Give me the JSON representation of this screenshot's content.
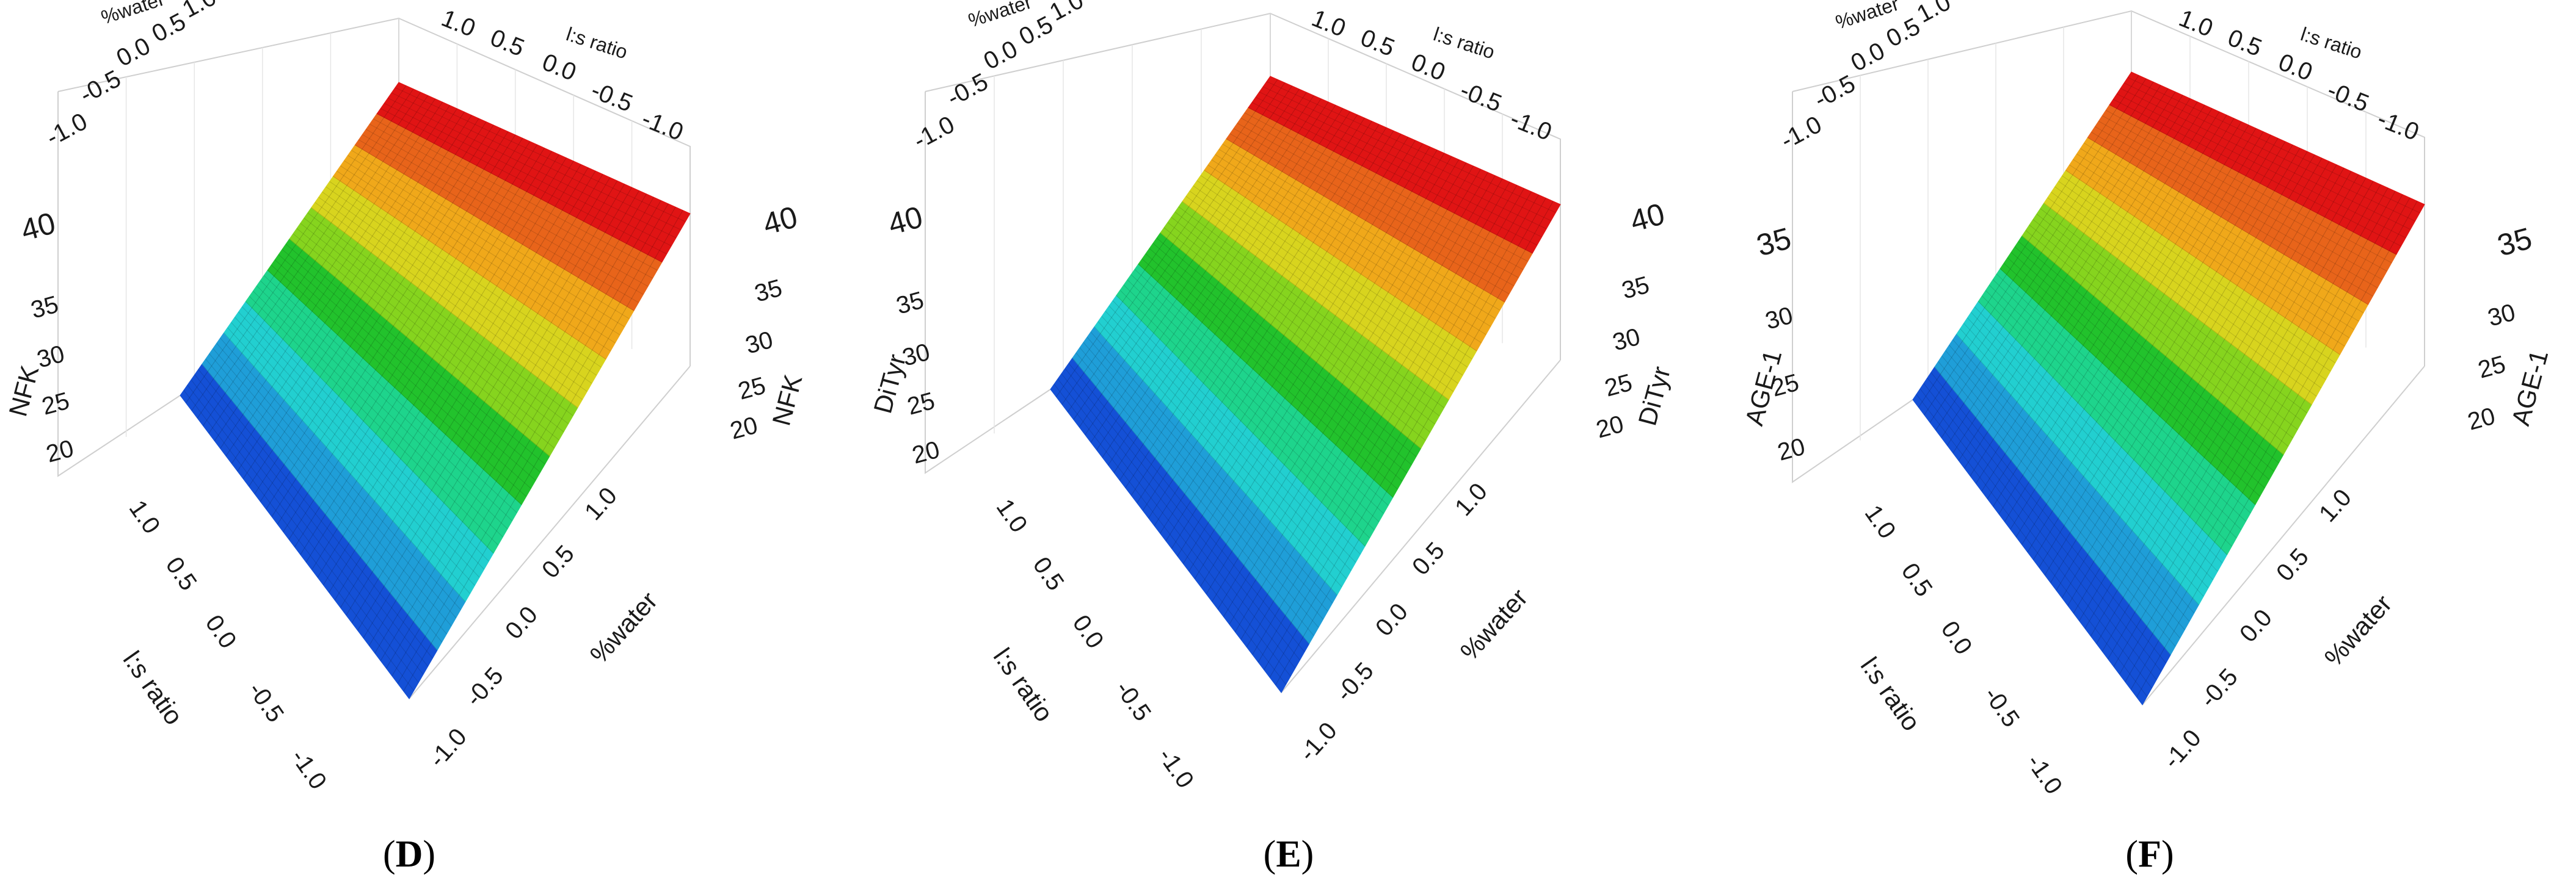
{
  "chart_data": [
    {
      "type": "surface",
      "panel_label": "D",
      "x_label": "%water",
      "y_label": "l:s ratio",
      "z_label": "NFK",
      "x_ticks": [
        "-1.0",
        "-0.5",
        "0.0",
        "0.5",
        "1.0"
      ],
      "y_ticks": [
        "1.0",
        "0.5",
        "0.0",
        "-0.5",
        "-1.0"
      ],
      "z_ticks": [
        "20",
        "25",
        "30",
        "35",
        "40"
      ],
      "xlim": [
        -1,
        1
      ],
      "ylim": [
        -1,
        1
      ],
      "zlim": [
        20,
        40
      ],
      "surface_corners": {
        "high_corner": 43,
        "mid_corner_a": 37,
        "mid_corner_b": 25,
        "low_corner": 17
      },
      "colors": [
        "#1450d6",
        "#1f9ed8",
        "#22cfd0",
        "#1ed48c",
        "#22c22c",
        "#86d41e",
        "#d8d41e",
        "#f0a81a",
        "#e8641a",
        "#e01414"
      ]
    },
    {
      "type": "surface",
      "panel_label": "E",
      "x_label": "%water",
      "y_label": "l:s ratio",
      "z_label": "DiTyr",
      "x_ticks": [
        "-1.0",
        "-0.5",
        "0.0",
        "0.5",
        "1.0"
      ],
      "y_ticks": [
        "1.0",
        "0.5",
        "0.0",
        "-0.5",
        "-1.0"
      ],
      "z_ticks": [
        "20",
        "25",
        "30",
        "35",
        "40"
      ],
      "xlim": [
        -1,
        1
      ],
      "ylim": [
        -1,
        1
      ],
      "zlim": [
        20,
        40
      ],
      "surface_corners": {
        "high_corner": 44,
        "mid_corner_a": 38,
        "mid_corner_b": 25,
        "low_corner": 16
      },
      "colors": [
        "#1450d6",
        "#1f9ed8",
        "#22cfd0",
        "#1ed48c",
        "#22c22c",
        "#86d41e",
        "#d8d41e",
        "#f0a81a",
        "#e8641a",
        "#e01414"
      ]
    },
    {
      "type": "surface",
      "panel_label": "F",
      "x_label": "%water",
      "y_label": "l:s ratio",
      "z_label": "AGE-1",
      "x_ticks": [
        "-1.0",
        "-0.5",
        "0.0",
        "0.5",
        "1.0"
      ],
      "y_ticks": [
        "1.0",
        "0.5",
        "0.0",
        "-0.5",
        "-1.0"
      ],
      "z_ticks": [
        "20",
        "25",
        "30",
        "35"
      ],
      "xlim": [
        -1,
        1
      ],
      "ylim": [
        -1,
        1
      ],
      "zlim": [
        20,
        37
      ],
      "surface_corners": {
        "high_corner": 39,
        "mid_corner_a": 34,
        "mid_corner_b": 24,
        "low_corner": 17
      },
      "colors": [
        "#1450d6",
        "#1f9ed8",
        "#22cfd0",
        "#1ed48c",
        "#22c22c",
        "#86d41e",
        "#d8d41e",
        "#f0a81a",
        "#e8641a",
        "#e01414"
      ]
    }
  ]
}
